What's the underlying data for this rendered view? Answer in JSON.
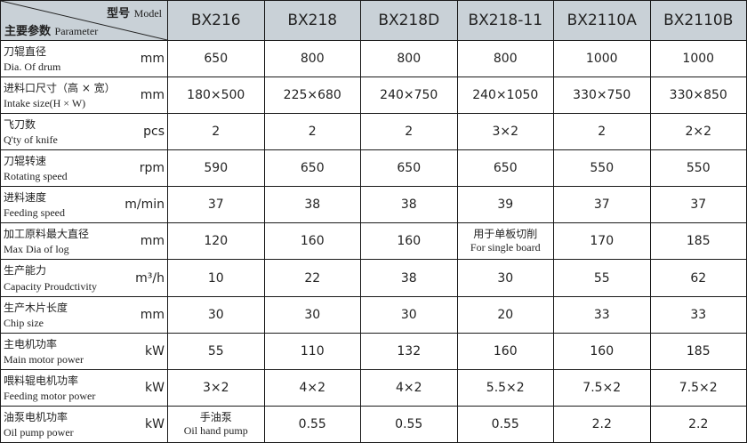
{
  "header": {
    "model_zh": "型号",
    "model_en": "Model",
    "param_zh": "主要参数",
    "param_en": "Parameter",
    "models": [
      "BX216",
      "BX218",
      "BX218D",
      "BX218-11",
      "BX2110A",
      "BX2110B"
    ]
  },
  "rows": [
    {
      "zh": "刀辊直径",
      "en": "Dia. Of drum",
      "unit": "mm",
      "values": [
        "650",
        "800",
        "800",
        "800",
        "1000",
        "1000"
      ]
    },
    {
      "zh": "进料口尺寸（高 × 宽）",
      "en": "Intake size(H × W)",
      "unit": "mm",
      "values": [
        "180×500",
        "225×680",
        "240×750",
        "240×1050",
        "330×750",
        "330×850"
      ]
    },
    {
      "zh": "飞刀数",
      "en": "Q'ty of knife",
      "unit": "pcs",
      "values": [
        "2",
        "2",
        "2",
        "3×2",
        "2",
        "2×2"
      ]
    },
    {
      "zh": "刀辊转速",
      "en": "Rotating speed",
      "unit": "rpm",
      "values": [
        "590",
        "650",
        "650",
        "650",
        "550",
        "550"
      ]
    },
    {
      "zh": "进料速度",
      "en": "Feeding speed",
      "unit": "m/min",
      "values": [
        "37",
        "38",
        "38",
        "39",
        "37",
        "37"
      ]
    },
    {
      "zh": "加工原料最大直径",
      "en": "Max Dia of log",
      "unit": "mm",
      "values": [
        "120",
        "160",
        "160",
        "用于单板切削|For single board",
        "170",
        "185"
      ]
    },
    {
      "zh": "生产能力",
      "en": "Capacity Proudctivity",
      "unit": "m³/h",
      "values": [
        "10",
        "22",
        "38",
        "30",
        "55",
        "62"
      ]
    },
    {
      "zh": "生产木片长度",
      "en": "Chip size",
      "unit": "mm",
      "values": [
        "30",
        "30",
        "30",
        "20",
        "33",
        "33"
      ]
    },
    {
      "zh": "主电机功率",
      "en": "Main motor power",
      "unit": "kW",
      "values": [
        "55",
        "110",
        "132",
        "160",
        "160",
        "185"
      ]
    },
    {
      "zh": "喂料辊电机功率",
      "en": "Feeding motor power",
      "unit": "kW",
      "values": [
        "3×2",
        "4×2",
        "4×2",
        "5.5×2",
        "7.5×2",
        "7.5×2"
      ]
    },
    {
      "zh": "油泵电机功率",
      "en": "Oil pump power",
      "unit": "kW",
      "values": [
        "手油泵|Oil hand pump",
        "0.55",
        "0.55",
        "0.55",
        "2.2",
        "2.2"
      ]
    }
  ]
}
